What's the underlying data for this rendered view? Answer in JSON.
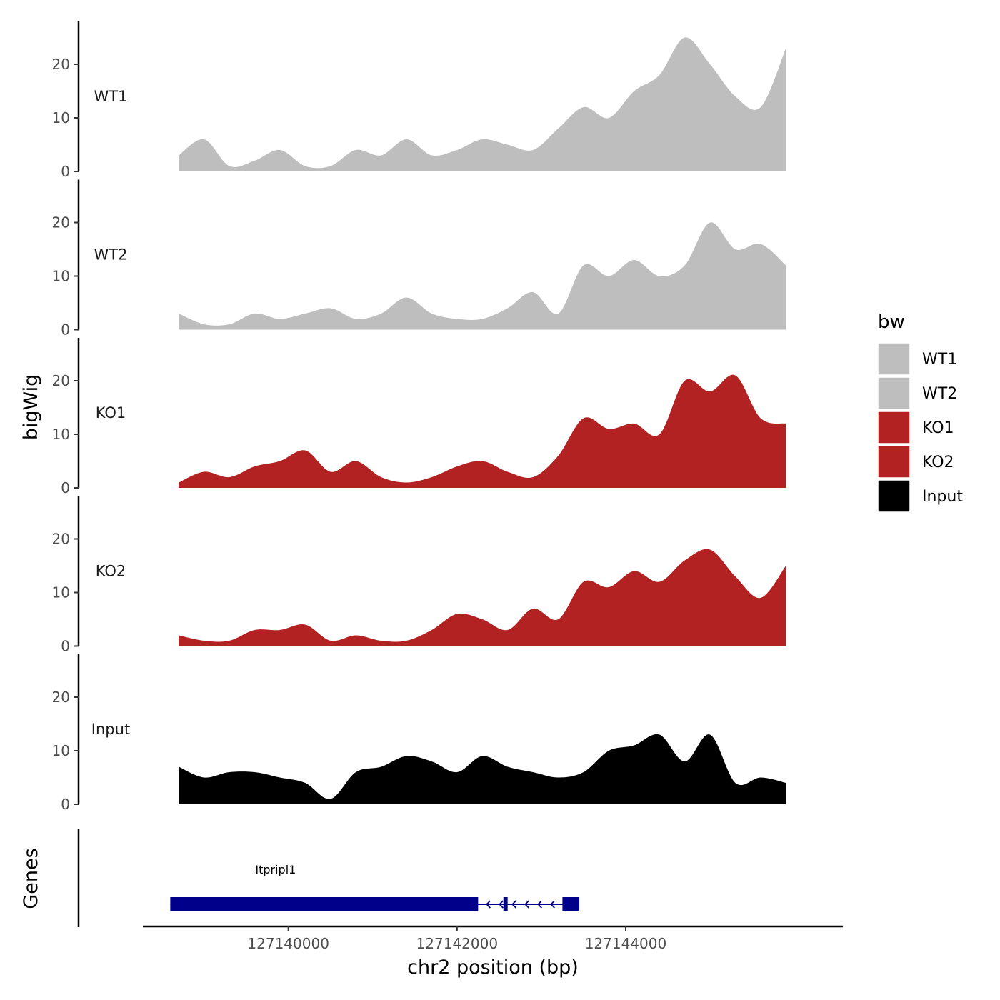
{
  "chart_data": {
    "type": "area",
    "xlabel": "chr2 position (bp)",
    "ylabel": "bigWig",
    "genes_label": "Genes",
    "xlim": [
      127138275,
      127146575
    ],
    "x_ticks": [
      127140000,
      127142000,
      127144000
    ],
    "x_tick_labels": [
      "127140000",
      "127142000",
      "127144000"
    ],
    "ylim": [
      0,
      28
    ],
    "y_ticks": [
      0,
      10,
      20
    ],
    "y_tick_labels": [
      "0",
      "10",
      "20"
    ],
    "x_positions": [
      127138700,
      127139000,
      127139300,
      127139600,
      127139900,
      127140200,
      127140500,
      127140800,
      127141100,
      127141400,
      127141700,
      127142000,
      127142300,
      127142600,
      127142900,
      127143200,
      127143500,
      127143800,
      127144100,
      127144400,
      127144700,
      127145000,
      127145300,
      127145600,
      127145900
    ],
    "series": [
      {
        "name": "WT1",
        "color": "#bebebe",
        "values": [
          3,
          6,
          1,
          2,
          4,
          1,
          1,
          4,
          3,
          6,
          3,
          4,
          6,
          5,
          4,
          8,
          12,
          10,
          15,
          18,
          25,
          20,
          14,
          12,
          23
        ]
      },
      {
        "name": "WT2",
        "color": "#bebebe",
        "values": [
          3,
          1,
          1,
          3,
          2,
          3,
          4,
          2,
          3,
          6,
          3,
          2,
          2,
          4,
          7,
          3,
          12,
          10,
          13,
          10,
          12,
          20,
          15,
          16,
          12
        ]
      },
      {
        "name": "KO1",
        "color": "#b22222",
        "values": [
          1,
          3,
          2,
          4,
          5,
          7,
          3,
          5,
          2,
          1,
          2,
          4,
          5,
          3,
          2,
          6,
          13,
          11,
          12,
          10,
          20,
          18,
          21,
          13,
          12
        ]
      },
      {
        "name": "KO2",
        "color": "#b22222",
        "values": [
          2,
          1,
          1,
          3,
          3,
          4,
          1,
          2,
          1,
          1,
          3,
          6,
          5,
          3,
          7,
          5,
          12,
          11,
          14,
          12,
          16,
          18,
          13,
          9,
          15
        ]
      },
      {
        "name": "Input",
        "color": "#000000",
        "values": [
          7,
          5,
          6,
          6,
          5,
          4,
          1,
          6,
          7,
          9,
          8,
          6,
          9,
          7,
          6,
          5,
          6,
          10,
          11,
          13,
          8,
          13,
          4,
          5,
          4
        ]
      }
    ],
    "legend": {
      "title": "bw",
      "entries": [
        {
          "label": "WT1",
          "color": "#bebebe"
        },
        {
          "label": "WT2",
          "color": "#bebebe"
        },
        {
          "label": "KO1",
          "color": "#b22222"
        },
        {
          "label": "KO2",
          "color": "#b22222"
        },
        {
          "label": "Input",
          "color": "#000000"
        }
      ]
    },
    "gene": {
      "name": "Itpripl1",
      "color": "#00008b",
      "strand": "-",
      "start": 127138600,
      "end": 127143300,
      "exons": [
        [
          127138600,
          127142250
        ],
        [
          127142550,
          127142600
        ],
        [
          127143250,
          127143450
        ]
      ]
    }
  }
}
